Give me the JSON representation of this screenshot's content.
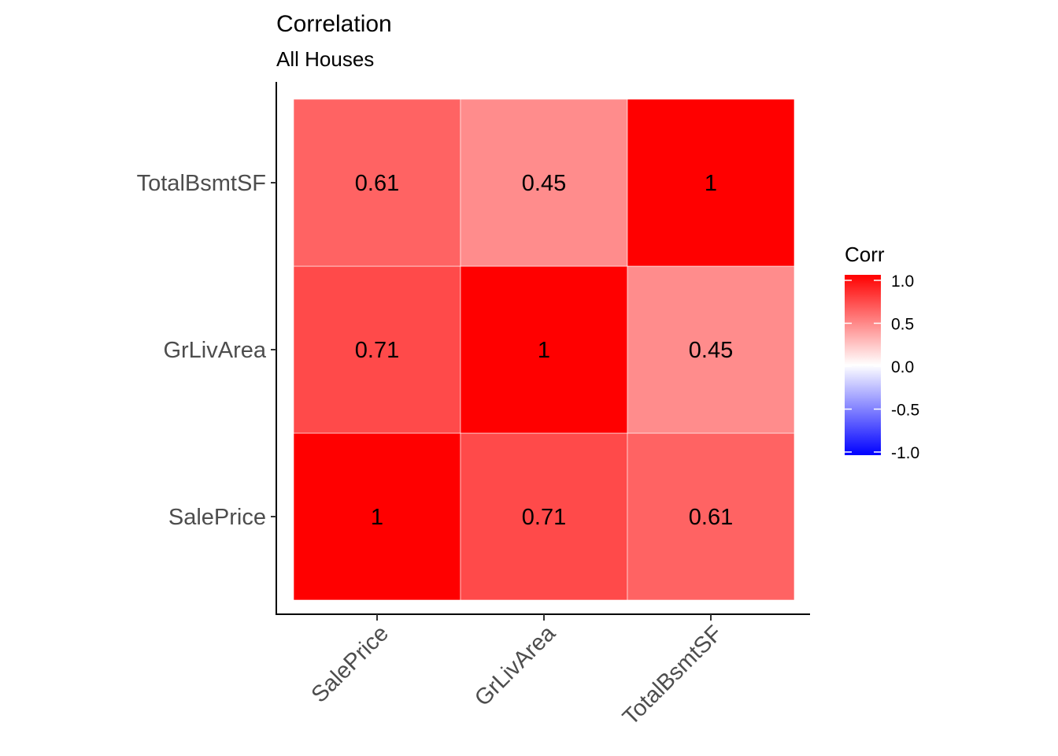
{
  "chart_data": {
    "type": "heatmap",
    "title": "Correlation",
    "subtitle": "All Houses",
    "x_categories": [
      "SalePrice",
      "GrLivArea",
      "TotalBsmtSF"
    ],
    "y_categories": [
      "SalePrice",
      "GrLivArea",
      "TotalBsmtSF"
    ],
    "values": [
      [
        1,
        0.71,
        0.61
      ],
      [
        0.71,
        1,
        0.45
      ],
      [
        0.61,
        0.45,
        1
      ]
    ],
    "cell_labels": [
      [
        "1",
        "0.71",
        "0.61"
      ],
      [
        "0.71",
        "1",
        "0.45"
      ],
      [
        "0.61",
        "0.45",
        "1"
      ]
    ],
    "legend": {
      "title": "Corr",
      "ticks": [
        "1.0",
        "0.5",
        "0.0",
        "-0.5",
        "-1.0"
      ],
      "tick_values": [
        1.0,
        0.5,
        0.0,
        -0.5,
        -1.0
      ],
      "range": [
        -1,
        1
      ],
      "placement": "right"
    },
    "colors": {
      "low": "#0000ff",
      "mid": "#ffffff",
      "high": "#ff0000"
    },
    "xlabel_rotation": "45 degrees",
    "grid": false
  }
}
